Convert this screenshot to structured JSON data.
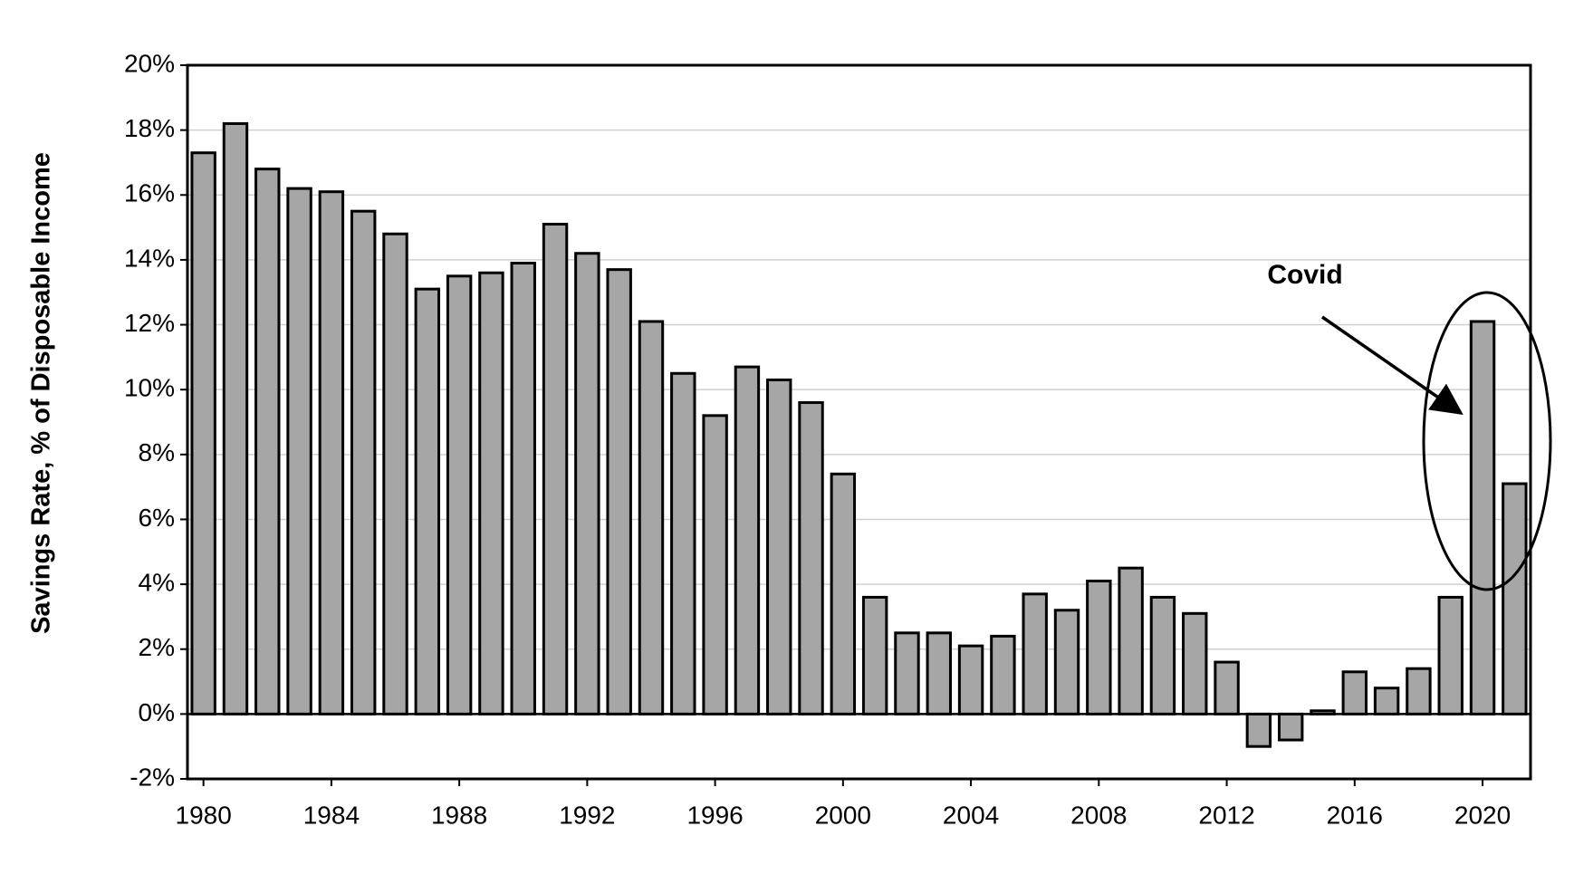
{
  "chart_data": {
    "type": "bar",
    "y_label": "Savings Rate, % of Disposable Income",
    "annotation": "Covid",
    "x": [
      1980,
      1981,
      1982,
      1983,
      1984,
      1985,
      1986,
      1987,
      1988,
      1989,
      1990,
      1991,
      1992,
      1993,
      1994,
      1995,
      1996,
      1997,
      1998,
      1999,
      2000,
      2001,
      2002,
      2003,
      2004,
      2005,
      2006,
      2007,
      2008,
      2009,
      2010,
      2011,
      2012,
      2013,
      2014,
      2015,
      2016,
      2017,
      2018,
      2019,
      2020,
      2021
    ],
    "values": [
      17.3,
      18.2,
      16.8,
      16.2,
      16.1,
      15.5,
      14.8,
      13.1,
      13.5,
      13.6,
      13.9,
      15.1,
      14.2,
      13.7,
      12.1,
      10.5,
      9.2,
      10.7,
      10.3,
      9.6,
      7.4,
      3.6,
      2.5,
      2.5,
      2.1,
      2.4,
      3.7,
      3.2,
      4.1,
      4.5,
      3.6,
      3.1,
      1.6,
      -1.0,
      -0.8,
      0.1,
      1.3,
      0.8,
      1.4,
      3.6,
      12.1,
      7.1
    ],
    "color": "#a6a6a6",
    "xlim": [
      1979.5,
      2021.5
    ],
    "xticks": [
      1980,
      1984,
      1988,
      1992,
      1996,
      2000,
      2004,
      2008,
      2012,
      2016,
      2020
    ],
    "ylim": [
      -2,
      20
    ],
    "yticks": [
      {
        "value": -2,
        "label": "-2%"
      },
      {
        "value": 0,
        "label": "0%"
      },
      {
        "value": 2,
        "label": "2%"
      },
      {
        "value": 4,
        "label": "4%"
      },
      {
        "value": 6,
        "label": "6%"
      },
      {
        "value": 8,
        "label": "8%"
      },
      {
        "value": 10,
        "label": "10%"
      },
      {
        "value": 12,
        "label": "12%"
      },
      {
        "value": 14,
        "label": "14%"
      },
      {
        "value": 16,
        "label": "16%"
      },
      {
        "value": 18,
        "label": "18%"
      },
      {
        "value": 20,
        "label": "20%"
      }
    ],
    "grid": true
  }
}
